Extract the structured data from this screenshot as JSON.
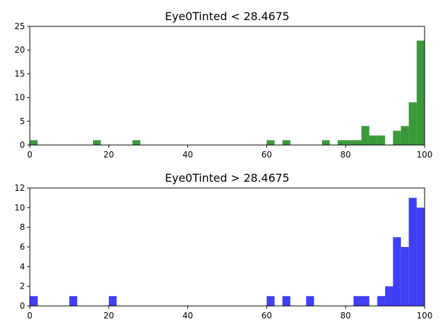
{
  "chart_data": [
    {
      "type": "bar",
      "title": "Eye0Tinted < 28.4675",
      "color": "#3a9a3a",
      "bin_width": 2,
      "bins_start": [
        0,
        16,
        26,
        60,
        64,
        74,
        78,
        80,
        82,
        84,
        86,
        88,
        92,
        94,
        96,
        98
      ],
      "values": [
        1,
        1,
        1,
        1,
        1,
        1,
        1,
        1,
        1,
        4,
        2,
        2,
        3,
        4,
        9,
        22
      ],
      "xlim": [
        0,
        100
      ],
      "ylim": [
        0,
        25
      ],
      "xticks": [
        "0",
        "20",
        "40",
        "60",
        "80",
        "100"
      ],
      "yticks": [
        "0",
        "5",
        "10",
        "15",
        "20",
        "25"
      ]
    },
    {
      "type": "bar",
      "title": "Eye0Tinted > 28.4675",
      "color": "#3f3ff5",
      "bin_width": 2,
      "bins_start": [
        0,
        10,
        20,
        60,
        64,
        70,
        82,
        84,
        88,
        90,
        92,
        94,
        96,
        98
      ],
      "values": [
        1,
        1,
        1,
        1,
        1,
        1,
        1,
        1,
        1,
        2,
        7,
        6,
        11,
        10
      ],
      "xlim": [
        0,
        100
      ],
      "ylim": [
        0,
        12
      ],
      "xticks": [
        "0",
        "20",
        "40",
        "60",
        "80",
        "100"
      ],
      "yticks": [
        "0",
        "2",
        "4",
        "6",
        "8",
        "10",
        "12"
      ]
    }
  ]
}
